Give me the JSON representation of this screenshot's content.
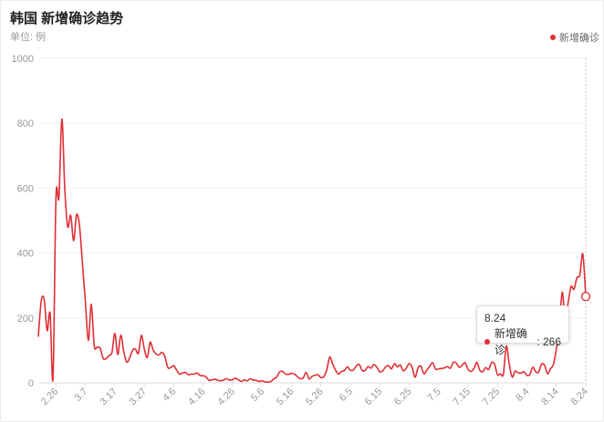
{
  "header": {
    "title": "韩国 新增确诊趋势",
    "unit": "单位: 例",
    "legend_label": "新增确诊"
  },
  "colors": {
    "series": "#e02f35",
    "grid": "#f0f0f0",
    "text": "#999999"
  },
  "tooltip": {
    "date": "8.24",
    "series_label": "新增确诊",
    "value_text": "266"
  },
  "chart_data": {
    "type": "line",
    "title": "韩国 新增确诊趋势",
    "ylabel": "单位: 例",
    "ylim": [
      0,
      1000
    ],
    "yticks": [
      0,
      200,
      400,
      600,
      800,
      1000
    ],
    "xticks": [
      "2.26",
      "3.7",
      "3.17",
      "3.27",
      "4.6",
      "4.16",
      "4.26",
      "5.6",
      "5.16",
      "5.26",
      "6.5",
      "6.15",
      "6.25",
      "7.5",
      "7.15",
      "7.25",
      "8.4",
      "8.14",
      "8.24"
    ],
    "grid": "horizontal",
    "legend_position": "top-right",
    "series": [
      {
        "name": "新增确诊",
        "x_start": "2.20",
        "x_end": "8.24",
        "values": [
          142,
          253,
          256,
          161,
          214,
          15,
          570,
          571,
          813,
          595,
          481,
          516,
          438,
          518,
          483,
          367,
          248,
          131,
          242,
          114,
          110,
          107,
          76,
          74,
          84,
          93,
          152,
          87,
          147,
          98,
          64,
          76,
          100,
          104,
          91,
          146,
          105,
          78,
          125,
          101,
          89,
          86,
          94,
          81,
          47,
          47,
          53,
          39,
          27,
          30,
          32,
          25,
          27,
          27,
          30,
          22,
          22,
          18,
          8,
          9,
          11,
          8,
          6,
          9,
          13,
          8,
          10,
          14,
          9,
          4,
          9,
          6,
          13,
          8,
          8,
          4,
          6,
          3,
          2,
          4,
          12,
          18,
          34,
          35,
          27,
          26,
          29,
          27,
          19,
          13,
          15,
          32,
          12,
          20,
          23,
          25,
          16,
          19,
          40,
          79,
          58,
          39,
          27,
          35,
          38,
          49,
          39,
          39,
          51,
          57,
          38,
          38,
          50,
          45,
          56,
          48,
          34,
          37,
          49,
          53,
          43,
          59,
          49,
          55,
          37,
          45,
          59,
          48,
          17,
          46,
          51,
          28,
          39,
          51,
          62,
          42,
          43,
          44,
          46,
          50,
          45,
          63,
          61,
          48,
          54,
          62,
          42,
          35,
          44,
          63,
          39,
          34,
          47,
          41,
          62,
          58,
          25,
          28,
          26,
          113,
          58,
          18,
          36,
          31,
          30,
          34,
          23,
          25,
          48,
          34,
          33,
          58,
          54,
          28,
          43,
          56,
          103,
          166,
          279,
          197,
          246,
          297,
          288,
          324,
          332,
          397,
          266
        ]
      }
    ]
  }
}
